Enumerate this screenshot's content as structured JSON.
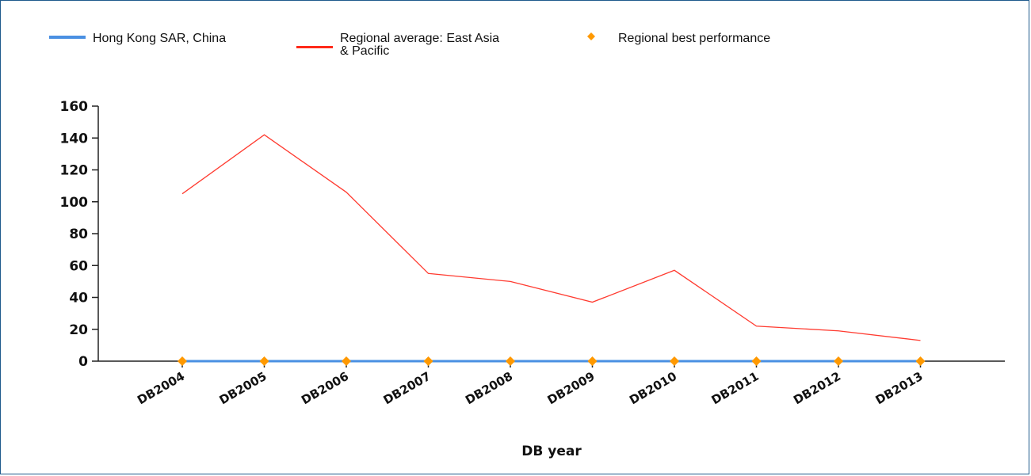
{
  "chart_data": {
    "type": "line",
    "title": "",
    "xlabel": "DB year",
    "ylabel": "",
    "ylim": [
      0,
      160
    ],
    "yticks": [
      0,
      20,
      40,
      60,
      80,
      100,
      120,
      140,
      160
    ],
    "grid": false,
    "legend_position": "top",
    "categories": [
      "DB2004",
      "DB2005",
      "DB2006",
      "DB2007",
      "DB2008",
      "DB2009",
      "DB2010",
      "DB2011",
      "DB2012",
      "DB2013"
    ],
    "series": [
      {
        "name": "Hong Kong SAR, China",
        "style": "line",
        "color": "#4a90e2",
        "values": [
          0,
          0,
          0,
          0,
          0,
          0,
          0,
          0,
          0,
          0
        ]
      },
      {
        "name": "Regional average: East Asia & Pacific",
        "style": "line",
        "color": "#ff3b30",
        "values": [
          105,
          142,
          106,
          55,
          50,
          37,
          57,
          22,
          19,
          13
        ]
      },
      {
        "name": "Regional best performance",
        "style": "marker",
        "color": "#ff9900",
        "values": [
          0,
          0,
          0,
          0,
          0,
          0,
          0,
          0,
          0,
          0
        ]
      }
    ],
    "legend": [
      {
        "name_lines": [
          "Hong Kong SAR, China"
        ]
      },
      {
        "name_lines": [
          "Regional average: East Asia",
          "& Pacific"
        ]
      },
      {
        "name_lines": [
          "Regional best performance"
        ]
      }
    ]
  }
}
